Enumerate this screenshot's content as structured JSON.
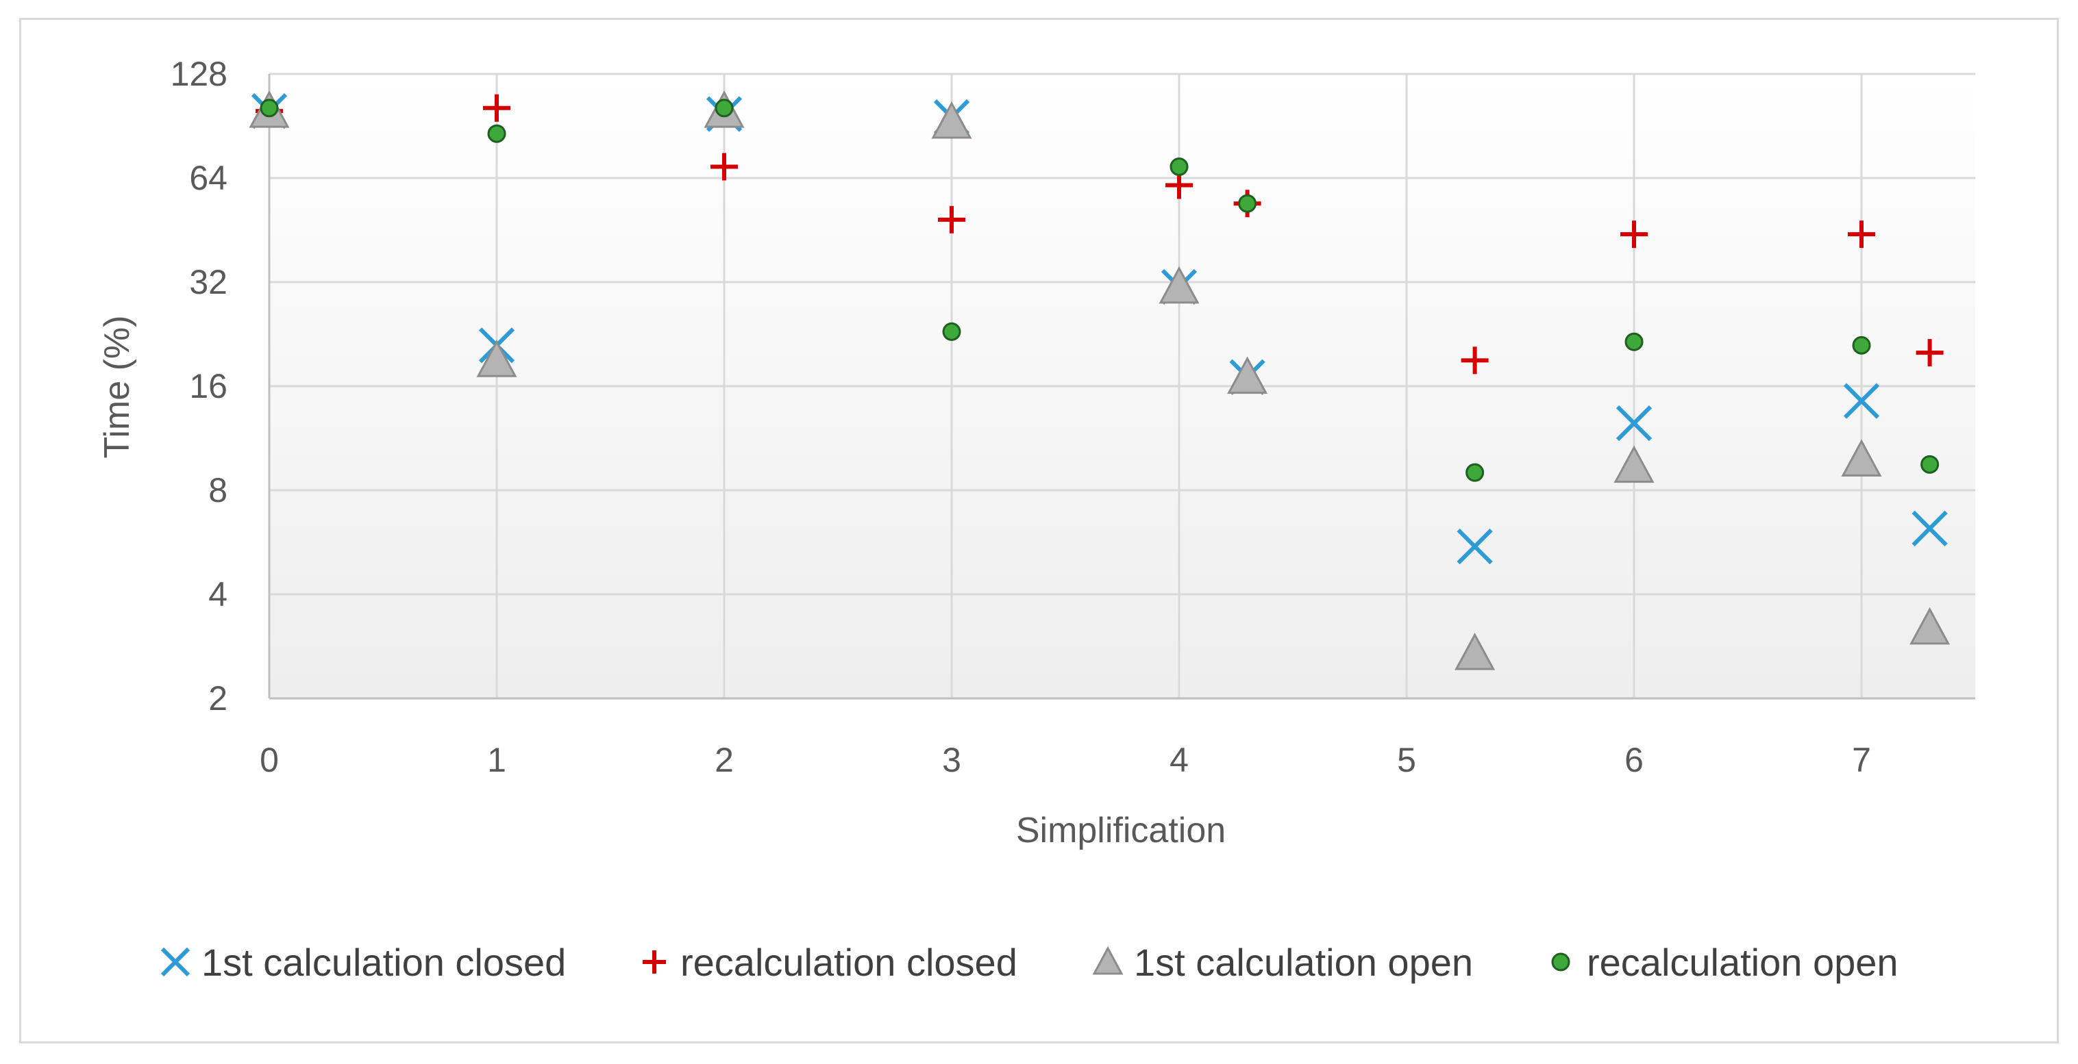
{
  "chart_data": {
    "type": "scatter",
    "title": "",
    "xlabel": "Simplification",
    "ylabel": "Time (%)",
    "xlim": [
      0,
      7.5
    ],
    "ylim": [
      2,
      128
    ],
    "yscale": "log2",
    "x_ticks": [
      "0",
      "1",
      "2",
      "3",
      "4",
      "5",
      "6",
      "7"
    ],
    "y_ticks": [
      "2",
      "4",
      "8",
      "16",
      "32",
      "64",
      "128"
    ],
    "grid": true,
    "legend_position": "bottom",
    "series": [
      {
        "name": "1st calculation closed",
        "marker": "x",
        "color": "#2e9bd6",
        "points": [
          [
            0,
            100
          ],
          [
            1,
            21
          ],
          [
            2,
            98
          ],
          [
            3,
            96
          ],
          [
            4,
            31
          ],
          [
            4.3,
            17
          ],
          [
            5.3,
            5.5
          ],
          [
            6,
            12.5
          ],
          [
            7,
            14.5
          ],
          [
            7.3,
            6.2
          ]
        ]
      },
      {
        "name": "recalculation closed",
        "marker": "plus",
        "color": "#d40000",
        "points": [
          [
            0,
            100
          ],
          [
            1,
            102
          ],
          [
            2,
            69
          ],
          [
            3,
            48.5
          ],
          [
            4,
            61
          ],
          [
            4.3,
            54
          ],
          [
            5.3,
            19
          ],
          [
            6,
            44
          ],
          [
            7,
            44
          ],
          [
            7.3,
            20
          ]
        ]
      },
      {
        "name": "1st calculation open",
        "marker": "triangle",
        "color": "#b4b4b4",
        "points": [
          [
            0,
            100
          ],
          [
            1,
            19
          ],
          [
            2,
            100
          ],
          [
            3,
            93
          ],
          [
            4,
            31
          ],
          [
            4.3,
            17
          ],
          [
            5.3,
            2.7
          ],
          [
            6,
            9.4
          ],
          [
            7,
            9.8
          ],
          [
            7.3,
            3.2
          ]
        ]
      },
      {
        "name": "recalculation open",
        "marker": "circle",
        "color": "#3ea83a",
        "points": [
          [
            0,
            102
          ],
          [
            1,
            86
          ],
          [
            2,
            102
          ],
          [
            3,
            23
          ],
          [
            4,
            69
          ],
          [
            4.3,
            54
          ],
          [
            5.3,
            9
          ],
          [
            6,
            21.5
          ],
          [
            7,
            21
          ],
          [
            7.3,
            9.5
          ]
        ]
      }
    ]
  }
}
